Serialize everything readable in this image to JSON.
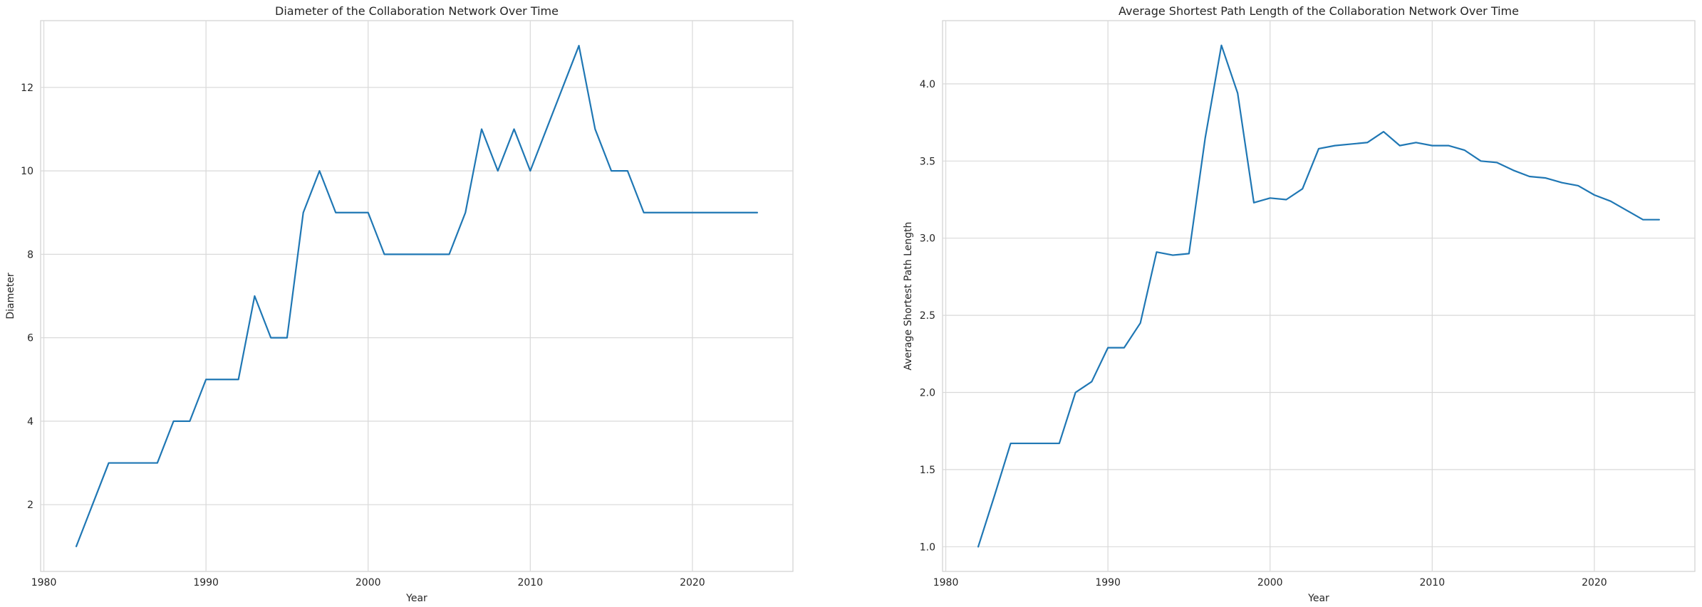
{
  "chart_data": [
    {
      "type": "line",
      "title": "Diameter of the Collaboration Network Over Time",
      "xlabel": "Year",
      "ylabel": "Diameter",
      "xlim": [
        1979.8,
        2026.2
      ],
      "ylim": [
        0.4,
        13.6
      ],
      "xticks": [
        1980,
        1990,
        2000,
        2010,
        2020
      ],
      "yticks": [
        2,
        4,
        6,
        8,
        10,
        12
      ],
      "ytick_labels": [
        "2",
        "4",
        "6",
        "8",
        "10",
        "12"
      ],
      "grid": true,
      "series": [
        {
          "color": "#1f77b4",
          "x": [
            1982,
            1983,
            1984,
            1985,
            1986,
            1987,
            1988,
            1989,
            1990,
            1991,
            1992,
            1993,
            1994,
            1995,
            1996,
            1997,
            1998,
            1999,
            2000,
            2001,
            2002,
            2003,
            2004,
            2005,
            2006,
            2007,
            2008,
            2009,
            2010,
            2011,
            2012,
            2013,
            2014,
            2015,
            2016,
            2017,
            2018,
            2019,
            2020,
            2021,
            2022,
            2023,
            2024
          ],
          "values": [
            1,
            2,
            3,
            3,
            3,
            3,
            4,
            4,
            5,
            5,
            5,
            7,
            6,
            6,
            9,
            10,
            9,
            9,
            9,
            8,
            8,
            8,
            8,
            8,
            9,
            11,
            10,
            11,
            10,
            11,
            12,
            13,
            11,
            10,
            10,
            9,
            9,
            9,
            9,
            9,
            9,
            9,
            9
          ]
        }
      ]
    },
    {
      "type": "line",
      "title": "Average Shortest Path Length of the Collaboration Network Over Time",
      "xlabel": "Year",
      "ylabel": "Average Shortest Path Length",
      "xlim": [
        1979.8,
        2026.2
      ],
      "ylim": [
        0.84,
        4.41
      ],
      "xticks": [
        1980,
        1990,
        2000,
        2010,
        2020
      ],
      "yticks": [
        1.0,
        1.5,
        2.0,
        2.5,
        3.0,
        3.5,
        4.0
      ],
      "ytick_labels": [
        "1.0",
        "1.5",
        "2.0",
        "2.5",
        "3.0",
        "3.5",
        "4.0"
      ],
      "grid": true,
      "series": [
        {
          "color": "#1f77b4",
          "x": [
            1982,
            1983,
            1984,
            1985,
            1986,
            1987,
            1988,
            1989,
            1990,
            1991,
            1992,
            1993,
            1994,
            1995,
            1996,
            1997,
            1998,
            1999,
            2000,
            2001,
            2002,
            2003,
            2004,
            2005,
            2006,
            2007,
            2008,
            2009,
            2010,
            2011,
            2012,
            2013,
            2014,
            2015,
            2016,
            2017,
            2018,
            2019,
            2020,
            2021,
            2022,
            2023,
            2024
          ],
          "values": [
            1.0,
            1.33,
            1.67,
            1.67,
            1.67,
            1.67,
            2.0,
            2.07,
            2.29,
            2.29,
            2.45,
            2.91,
            2.89,
            2.9,
            3.65,
            4.25,
            3.94,
            3.23,
            3.26,
            3.25,
            3.32,
            3.58,
            3.6,
            3.61,
            3.62,
            3.69,
            3.6,
            3.62,
            3.6,
            3.6,
            3.57,
            3.5,
            3.49,
            3.44,
            3.4,
            3.39,
            3.36,
            3.34,
            3.28,
            3.24,
            3.18,
            3.12,
            3.12
          ]
        }
      ]
    }
  ]
}
